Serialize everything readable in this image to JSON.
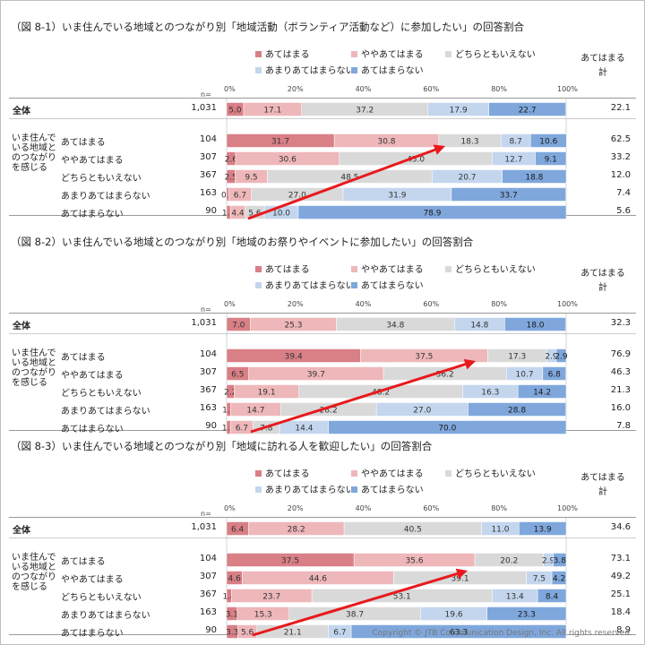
{
  "colors": [
    "#d97f86",
    "#eeb7ba",
    "#d9d9d9",
    "#c4d6ee",
    "#7fa7dc"
  ],
  "legend_labels": [
    "あてはまる",
    "ややあてはまる",
    "どちらともいえない",
    "あまりあてはまらない",
    "あてはまらない"
  ],
  "axis_ticks": [
    "0%",
    "20%",
    "40%",
    "60%",
    "80%",
    "100%"
  ],
  "n_header": "n=",
  "total_header": "あてはまる計",
  "overall_label": "全体",
  "group_label": "いま住んでいる地域とのつながりを感じる",
  "group_rows": [
    "あてはまる",
    "ややあてはまる",
    "どちらともいえない",
    "あまりあてはまらない",
    "あてはまらない"
  ],
  "copyright": "Copyright © JTB Communication Design, Inc. All rights reserved.",
  "chart_data": [
    {
      "type": "bar",
      "title": "（図 8-1）いま住んでいる地域とのつながり別「地域活動（ボランティア活動など）に参加したい」の回答割合",
      "series": [
        "あてはまる",
        "ややあてはまる",
        "どちらともいえない",
        "あまりあてはまらない",
        "あてはまらない"
      ],
      "rows": [
        {
          "label": "全体",
          "n": "1,031",
          "values": [
            5.0,
            17.1,
            37.2,
            17.9,
            22.7
          ],
          "total": "22.1"
        },
        {
          "label": "あてはまる",
          "n": "104",
          "values": [
            31.7,
            30.8,
            18.3,
            8.7,
            10.6
          ],
          "total": "62.5"
        },
        {
          "label": "ややあてはまる",
          "n": "307",
          "values": [
            2.6,
            30.6,
            45.0,
            12.7,
            9.1
          ],
          "total": "33.2"
        },
        {
          "label": "どちらともいえない",
          "n": "367",
          "values": [
            2.5,
            9.5,
            48.5,
            20.7,
            18.8
          ],
          "total": "12.0"
        },
        {
          "label": "あまりあてはまらない",
          "n": "163",
          "values": [
            0.6,
            6.7,
            27.0,
            31.9,
            33.7
          ],
          "total": "7.4"
        },
        {
          "label": "あてはまらない",
          "n": "90",
          "values": [
            1.1,
            4.4,
            5.6,
            10.0,
            78.9
          ],
          "total": "5.6"
        }
      ],
      "xlim": [
        0,
        100
      ]
    },
    {
      "type": "bar",
      "title": "（図 8-2）いま住んでいる地域とのつながり別「地域のお祭りやイベントに参加したい」の回答割合",
      "series": [
        "あてはまる",
        "ややあてはまる",
        "どちらともいえない",
        "あまりあてはまらない",
        "あてはまらない"
      ],
      "rows": [
        {
          "label": "全体",
          "n": "1,031",
          "values": [
            7.0,
            25.3,
            34.8,
            14.8,
            18.0
          ],
          "total": "32.3"
        },
        {
          "label": "あてはまる",
          "n": "104",
          "values": [
            39.4,
            37.5,
            17.3,
            2.9,
            2.9
          ],
          "total": "76.9"
        },
        {
          "label": "ややあてはまる",
          "n": "307",
          "values": [
            6.5,
            39.7,
            36.2,
            10.7,
            6.8
          ],
          "total": "46.3"
        },
        {
          "label": "どちらともいえない",
          "n": "367",
          "values": [
            2.2,
            19.1,
            48.2,
            16.3,
            14.2
          ],
          "total": "21.3"
        },
        {
          "label": "あまりあてはまらない",
          "n": "163",
          "values": [
            1.2,
            14.7,
            28.2,
            27.0,
            28.8
          ],
          "total": "16.0"
        },
        {
          "label": "あてはまらない",
          "n": "90",
          "values": [
            1.1,
            6.7,
            7.8,
            14.4,
            70.0
          ],
          "total": "7.8"
        }
      ],
      "xlim": [
        0,
        100
      ]
    },
    {
      "type": "bar",
      "title": "（図 8-3）いま住んでいる地域とのつながり別「地域に訪れる人を歓迎したい」の回答割合",
      "series": [
        "あてはまる",
        "ややあてはまる",
        "どちらともいえない",
        "あまりあてはまらない",
        "あてはまらない"
      ],
      "rows": [
        {
          "label": "全体",
          "n": "1,031",
          "values": [
            6.4,
            28.2,
            40.5,
            11.0,
            13.9
          ],
          "total": "34.6"
        },
        {
          "label": "あてはまる",
          "n": "104",
          "values": [
            37.5,
            35.6,
            20.2,
            2.9,
            3.8
          ],
          "total": "73.1"
        },
        {
          "label": "ややあてはまる",
          "n": "307",
          "values": [
            4.6,
            44.6,
            39.1,
            7.5,
            4.2
          ],
          "total": "49.2"
        },
        {
          "label": "どちらともいえない",
          "n": "367",
          "values": [
            1.4,
            23.7,
            53.1,
            13.4,
            8.4
          ],
          "total": "25.1"
        },
        {
          "label": "あまりあてはまらない",
          "n": "163",
          "values": [
            3.1,
            15.3,
            38.7,
            19.6,
            23.3
          ],
          "total": "18.4"
        },
        {
          "label": "あてはまらない",
          "n": "90",
          "values": [
            3.3,
            5.6,
            21.1,
            6.7,
            63.3
          ],
          "total": "8.9"
        }
      ],
      "xlim": [
        0,
        100
      ]
    }
  ]
}
